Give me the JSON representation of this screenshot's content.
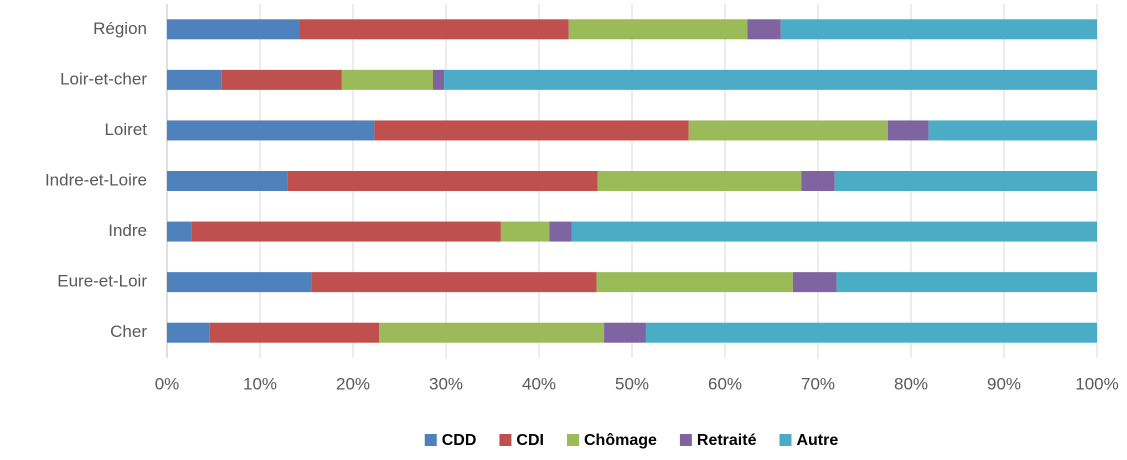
{
  "chart_data": {
    "type": "stacked_bar_horizontal",
    "categories": [
      "Région",
      "Loir-et-cher",
      "Loiret",
      "Indre-et-Loire",
      "Indre",
      "Eure-et-Loir",
      "Cher"
    ],
    "series": [
      {
        "name": "CDD",
        "color": "#4f81bd",
        "values": [
          14.3,
          5.9,
          22.3,
          13.0,
          2.6,
          15.5,
          4.6
        ]
      },
      {
        "name": "CDI",
        "color": "#c0504d",
        "values": [
          28.9,
          12.9,
          33.8,
          33.3,
          33.3,
          30.7,
          18.2
        ]
      },
      {
        "name": "Chômage",
        "color": "#9bbb59",
        "values": [
          19.2,
          9.8,
          21.4,
          21.9,
          5.2,
          21.1,
          24.2
        ]
      },
      {
        "name": "Retraité",
        "color": "#8064a2",
        "values": [
          3.6,
          1.2,
          4.4,
          3.6,
          2.4,
          4.7,
          4.5
        ]
      },
      {
        "name": "Autre",
        "color": "#4bacc6",
        "values": [
          34.0,
          70.2,
          18.1,
          28.2,
          56.5,
          28.0,
          48.5
        ]
      }
    ],
    "xlim": [
      0,
      100
    ],
    "xticks": [
      {
        "value": 0,
        "label": "0%"
      },
      {
        "value": 10,
        "label": "10%"
      },
      {
        "value": 20,
        "label": "20%"
      },
      {
        "value": 30,
        "label": "30%"
      },
      {
        "value": 40,
        "label": "40%"
      },
      {
        "value": 50,
        "label": "50%"
      },
      {
        "value": 60,
        "label": "60%"
      },
      {
        "value": 70,
        "label": "70%"
      },
      {
        "value": 80,
        "label": "80%"
      },
      {
        "value": 90,
        "label": "90%"
      },
      {
        "value": 100,
        "label": "100%"
      }
    ],
    "grid": true,
    "legend": "bottom"
  }
}
